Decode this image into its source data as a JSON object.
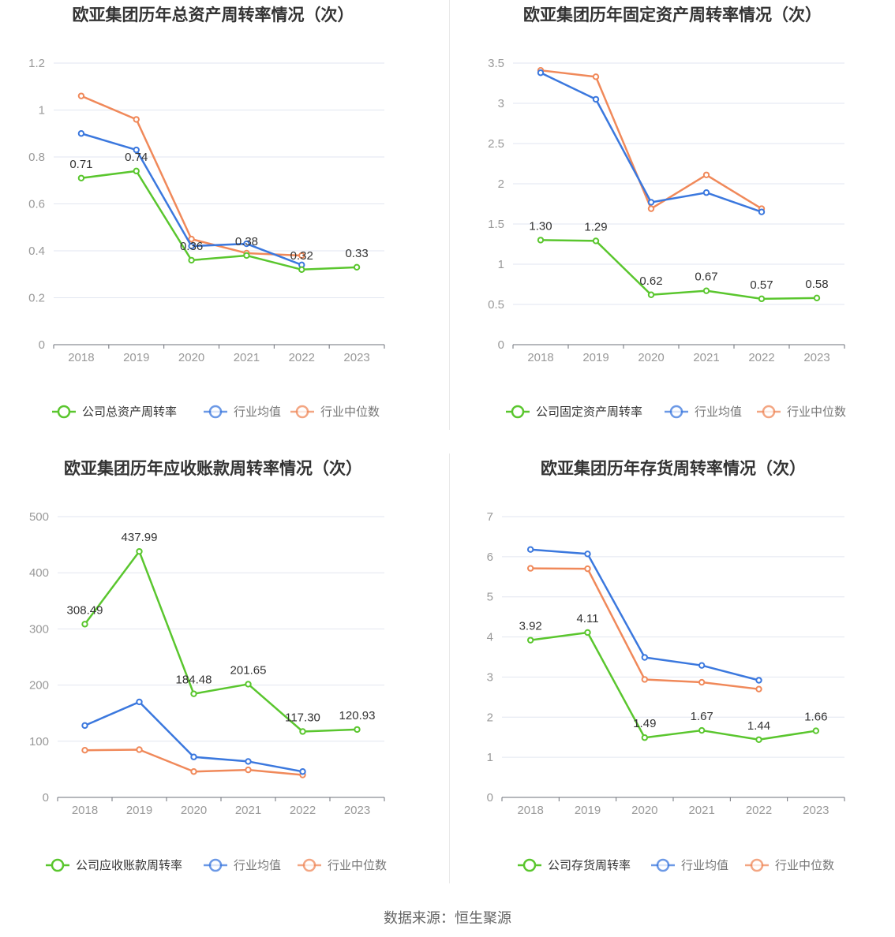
{
  "source": "数据来源：恒生聚源",
  "colors": {
    "company": "#5ac62e",
    "avg": "#3b78de",
    "median": "#f0895a",
    "grid": "#e2e6f0",
    "axis": "#999999",
    "text": "#333333"
  },
  "chart_data": [
    {
      "type": "line",
      "title": "欧亚集团历年总资产周转率情况（次）",
      "categories": [
        "2018",
        "2019",
        "2020",
        "2021",
        "2022",
        "2023"
      ],
      "ylim": [
        0,
        1.2
      ],
      "yticks": [
        "0",
        "0.2",
        "0.4",
        "0.6",
        "0.8",
        "1",
        "1.2"
      ],
      "series": [
        {
          "name": "公司总资产周转率",
          "color": "#5ac62e",
          "values": [
            0.71,
            0.74,
            0.36,
            0.38,
            0.32,
            0.33
          ],
          "labels": [
            "0.71",
            "0.74",
            "0.36",
            "0.38",
            "0.32",
            "0.33"
          ]
        },
        {
          "name": "行业均值",
          "color": "#3b78de",
          "values": [
            0.9,
            0.83,
            0.42,
            0.43,
            0.34,
            null
          ]
        },
        {
          "name": "行业中位数",
          "color": "#f0895a",
          "values": [
            1.06,
            0.96,
            0.45,
            0.39,
            0.38,
            null
          ]
        }
      ]
    },
    {
      "type": "line",
      "title": "欧亚集团历年固定资产周转率情况（次）",
      "categories": [
        "2018",
        "2019",
        "2020",
        "2021",
        "2022",
        "2023"
      ],
      "ylim": [
        0,
        3.5
      ],
      "yticks": [
        "0",
        "0.5",
        "1",
        "1.5",
        "2",
        "2.5",
        "3",
        "3.5"
      ],
      "series": [
        {
          "name": "公司固定资产周转率",
          "color": "#5ac62e",
          "values": [
            1.3,
            1.29,
            0.62,
            0.67,
            0.57,
            0.58
          ],
          "labels": [
            "1.30",
            "1.29",
            "0.62",
            "0.67",
            "0.57",
            "0.58"
          ]
        },
        {
          "name": "行业均值",
          "color": "#3b78de",
          "values": [
            3.38,
            3.05,
            1.77,
            1.89,
            1.65,
            null
          ]
        },
        {
          "name": "行业中位数",
          "color": "#f0895a",
          "values": [
            3.41,
            3.33,
            1.69,
            2.11,
            1.69,
            null
          ]
        }
      ]
    },
    {
      "type": "line",
      "title": "欧亚集团历年应收账款周转率情况（次）",
      "categories": [
        "2018",
        "2019",
        "2020",
        "2021",
        "2022",
        "2023"
      ],
      "ylim": [
        0,
        500
      ],
      "yticks": [
        "0",
        "100",
        "200",
        "300",
        "400",
        "500"
      ],
      "series": [
        {
          "name": "公司应收账款周转率",
          "color": "#5ac62e",
          "values": [
            308.49,
            437.99,
            184.48,
            201.65,
            117.3,
            120.93
          ],
          "labels": [
            "308.49",
            "437.99",
            "184.48",
            "201.65",
            "117.30",
            "120.93"
          ]
        },
        {
          "name": "行业均值",
          "color": "#3b78de",
          "values": [
            128,
            170,
            72,
            64,
            46,
            null
          ]
        },
        {
          "name": "行业中位数",
          "color": "#f0895a",
          "values": [
            84,
            85,
            46,
            49,
            40,
            null
          ]
        }
      ]
    },
    {
      "type": "line",
      "title": "欧亚集团历年存货周转率情况（次）",
      "categories": [
        "2018",
        "2019",
        "2020",
        "2021",
        "2022",
        "2023"
      ],
      "ylim": [
        0,
        7
      ],
      "yticks": [
        "0",
        "1",
        "2",
        "3",
        "4",
        "5",
        "6",
        "7"
      ],
      "series": [
        {
          "name": "公司存货周转率",
          "color": "#5ac62e",
          "values": [
            3.92,
            4.11,
            1.49,
            1.67,
            1.44,
            1.66
          ],
          "labels": [
            "3.92",
            "4.11",
            "1.49",
            "1.67",
            "1.44",
            "1.66"
          ]
        },
        {
          "name": "行业均值",
          "color": "#3b78de",
          "values": [
            6.18,
            6.07,
            3.49,
            3.29,
            2.92,
            null
          ]
        },
        {
          "name": "行业中位数",
          "color": "#f0895a",
          "values": [
            5.71,
            5.7,
            2.94,
            2.87,
            2.7,
            null
          ]
        }
      ]
    }
  ]
}
